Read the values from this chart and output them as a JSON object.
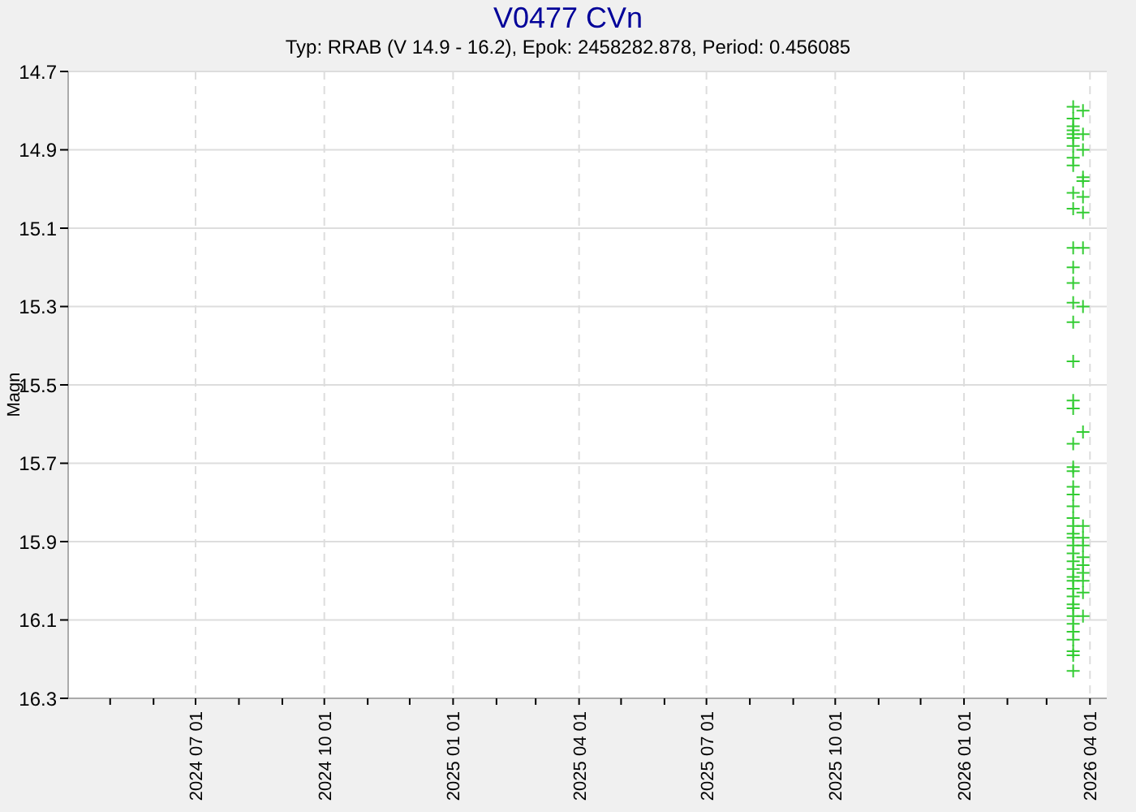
{
  "chart_data": {
    "type": "scatter",
    "title": "V0477 CVn",
    "subtitle": "Typ: RRAB (V 14.9 - 16.2), Epok: 2458282.878, Period: 0.456085",
    "ylabel": "Magn",
    "xlim": [
      "2024-04-01",
      "2026-04-13"
    ],
    "xticks": [
      {
        "value": "2024-05-01",
        "label": null
      },
      {
        "value": "2024-06-01",
        "label": null
      },
      {
        "value": "2024-07-01",
        "label": "2024 07 01"
      },
      {
        "value": "2024-08-01",
        "label": null
      },
      {
        "value": "2024-09-01",
        "label": null
      },
      {
        "value": "2024-10-01",
        "label": "2024 10 01"
      },
      {
        "value": "2024-11-01",
        "label": null
      },
      {
        "value": "2024-12-01",
        "label": null
      },
      {
        "value": "2025-01-01",
        "label": "2025 01 01"
      },
      {
        "value": "2025-02-01",
        "label": null
      },
      {
        "value": "2025-03-01",
        "label": null
      },
      {
        "value": "2025-04-01",
        "label": "2025 04 01"
      },
      {
        "value": "2025-05-01",
        "label": null
      },
      {
        "value": "2025-06-01",
        "label": null
      },
      {
        "value": "2025-07-01",
        "label": "2025 07 01"
      },
      {
        "value": "2025-08-01",
        "label": null
      },
      {
        "value": "2025-09-01",
        "label": null
      },
      {
        "value": "2025-10-01",
        "label": "2025 10 01"
      },
      {
        "value": "2025-11-01",
        "label": null
      },
      {
        "value": "2025-12-01",
        "label": null
      },
      {
        "value": "2026-01-01",
        "label": "2026 01 01"
      },
      {
        "value": "2026-02-01",
        "label": null
      },
      {
        "value": "2026-03-01",
        "label": null
      },
      {
        "value": "2026-04-01",
        "label": "2026 04 01"
      }
    ],
    "ylim": [
      16.3,
      14.7
    ],
    "yticks": [
      14.7,
      14.9,
      15.1,
      15.3,
      15.5,
      15.7,
      15.9,
      16.1,
      16.3
    ],
    "grid": true,
    "marker": "cross",
    "series": [
      {
        "color": "#33cc33",
        "x": [
          "2026-03-20",
          "2026-03-20",
          "2026-03-20",
          "2026-03-20",
          "2026-03-20",
          "2026-03-20",
          "2026-03-20",
          "2026-03-20",
          "2026-03-20",
          "2026-03-20",
          "2026-03-20",
          "2026-03-20",
          "2026-03-20",
          "2026-03-20",
          "2026-03-20",
          "2026-03-20",
          "2026-03-20",
          "2026-03-20",
          "2026-03-20",
          "2026-03-20",
          "2026-03-20",
          "2026-03-20",
          "2026-03-20",
          "2026-03-20",
          "2026-03-20",
          "2026-03-20",
          "2026-03-20",
          "2026-03-20",
          "2026-03-20",
          "2026-03-20",
          "2026-03-20",
          "2026-03-20",
          "2026-03-20",
          "2026-03-20",
          "2026-03-20",
          "2026-03-20",
          "2026-03-20",
          "2026-03-20",
          "2026-03-20",
          "2026-03-20",
          "2026-03-20",
          "2026-03-20",
          "2026-03-20",
          "2026-03-20",
          "2026-03-20",
          "2026-03-20",
          "2026-03-27",
          "2026-03-27",
          "2026-03-27",
          "2026-03-27",
          "2026-03-27",
          "2026-03-27",
          "2026-03-27",
          "2026-03-27",
          "2026-03-27",
          "2026-03-27",
          "2026-03-27",
          "2026-03-27",
          "2026-03-27",
          "2026-03-27",
          "2026-03-27",
          "2026-03-27",
          "2026-03-27",
          "2026-03-27",
          "2026-03-27"
        ],
        "values": [
          14.79,
          14.82,
          14.84,
          14.85,
          14.86,
          14.87,
          14.89,
          14.92,
          14.94,
          15.01,
          15.05,
          15.15,
          15.2,
          15.24,
          15.29,
          15.34,
          15.44,
          15.54,
          15.56,
          15.65,
          15.71,
          15.72,
          15.76,
          15.78,
          15.81,
          15.84,
          15.86,
          15.88,
          15.89,
          15.91,
          15.93,
          15.95,
          15.97,
          15.99,
          16.0,
          16.02,
          16.04,
          16.06,
          16.09,
          16.11,
          16.13,
          16.15,
          16.18,
          16.19,
          16.23,
          16.07,
          14.8,
          14.86,
          14.9,
          14.97,
          14.98,
          15.02,
          15.06,
          15.15,
          15.3,
          15.62,
          15.86,
          15.89,
          15.91,
          15.94,
          15.96,
          15.98,
          16.0,
          16.03,
          16.09
        ]
      }
    ]
  }
}
